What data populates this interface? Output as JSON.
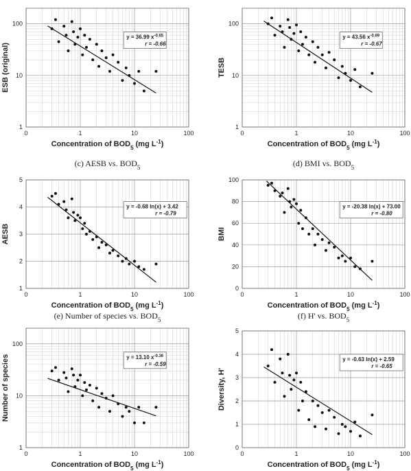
{
  "chart_data": [
    {
      "type": "scatter",
      "ylabel": "ESB (original)",
      "xlabel": [
        "Concentration of BOD",
        "5",
        " (mg L",
        "-1",
        ")"
      ],
      "x": [
        0.3,
        0.35,
        0.4,
        0.5,
        0.55,
        0.6,
        0.7,
        0.75,
        0.8,
        0.9,
        1.0,
        1.1,
        1.2,
        1.3,
        1.5,
        1.7,
        2.0,
        2.2,
        2.5,
        3.0,
        3.5,
        4.0,
        5.0,
        6.0,
        7.0,
        8.0,
        10,
        12,
        15,
        25
      ],
      "series": [
        {
          "color": "#111111",
          "values": [
            80,
            120,
            45,
            90,
            60,
            30,
            110,
            70,
            40,
            55,
            80,
            25,
            60,
            35,
            50,
            20,
            40,
            15,
            30,
            22,
            12,
            25,
            18,
            8,
            14,
            10,
            7,
            12,
            5,
            12
          ]
        }
      ],
      "xlim": [
        0.1,
        100
      ],
      "xticks": [
        {
          "value": 0.1,
          "label": "0"
        },
        1,
        10,
        100
      ],
      "xlog": true,
      "ylim": [
        1,
        200
      ],
      "yticks": [
        1,
        10,
        100
      ],
      "ylog": true,
      "grid": true,
      "fit": {
        "x": [
          0.25,
          25
        ],
        "y": [
          91,
          4.55
        ]
      },
      "equation": [
        "y = 36.99 x",
        "-0.65"
      ],
      "r_label": "r = -0.66"
    },
    {
      "type": "scatter",
      "ylabel": "TESB",
      "xlabel": [
        "Concentration of BOD",
        "5",
        " (mg L",
        "-1",
        ")"
      ],
      "x": [
        0.3,
        0.35,
        0.4,
        0.5,
        0.55,
        0.6,
        0.7,
        0.75,
        0.8,
        0.9,
        1.0,
        1.1,
        1.2,
        1.3,
        1.5,
        1.7,
        2.0,
        2.2,
        2.5,
        3.0,
        3.5,
        4.0,
        5.0,
        6.0,
        7.0,
        8.0,
        10,
        12,
        15,
        25
      ],
      "series": [
        {
          "color": "#111111",
          "values": [
            100,
            130,
            60,
            90,
            70,
            35,
            120,
            85,
            50,
            65,
            95,
            30,
            70,
            40,
            55,
            25,
            45,
            18,
            35,
            25,
            14,
            28,
            20,
            9,
            15,
            11,
            8,
            13,
            6,
            11
          ]
        }
      ],
      "xlim": [
        0.1,
        100
      ],
      "xticks": [
        {
          "value": 0.1,
          "label": "0"
        },
        1,
        10,
        100
      ],
      "xlog": true,
      "ylim": [
        1,
        200
      ],
      "yticks": [
        1,
        10,
        100
      ],
      "ylog": true,
      "grid": true,
      "fit": {
        "x": [
          0.25,
          25
        ],
        "y": [
          113,
          4.7
        ]
      },
      "equation": [
        "y = 43.56 x",
        "-0.69"
      ],
      "r_label": "r = -0.67"
    },
    {
      "type": "scatter",
      "subtitle": [
        "(c)  AESB  vs.  BOD",
        "5"
      ],
      "ylabel": "AESB",
      "xlabel": [
        "Concentration of BOD",
        "5",
        " (mg L",
        "-1",
        ")"
      ],
      "x": [
        0.3,
        0.35,
        0.4,
        0.5,
        0.55,
        0.6,
        0.7,
        0.75,
        0.8,
        0.9,
        1.0,
        1.1,
        1.2,
        1.3,
        1.5,
        1.7,
        2.0,
        2.2,
        2.5,
        3.0,
        3.5,
        4.0,
        5.0,
        6.0,
        7.0,
        8.0,
        10,
        12,
        15,
        25
      ],
      "series": [
        {
          "color": "#111111",
          "values": [
            4.4,
            4.5,
            4.1,
            4.2,
            3.9,
            3.6,
            4.3,
            3.8,
            3.5,
            3.7,
            3.6,
            3.2,
            3.4,
            3.0,
            3.1,
            2.8,
            2.9,
            2.5,
            2.7,
            2.6,
            2.3,
            2.4,
            2.2,
            2.0,
            2.1,
            1.9,
            2.0,
            1.8,
            1.7,
            1.9
          ]
        }
      ],
      "xlim": [
        0.1,
        100
      ],
      "xticks": [
        {
          "value": 0.1,
          "label": "0"
        },
        1,
        10,
        100
      ],
      "xlog": true,
      "ylim": [
        1,
        5
      ],
      "yticks": [
        1,
        2,
        3,
        4,
        5
      ],
      "ylog": false,
      "grid": true,
      "fit": {
        "x": [
          0.25,
          25
        ],
        "y": [
          4.36,
          1.23
        ]
      },
      "equation": [
        "y = -0.68 ln(x) + 3.42"
      ],
      "r_label": "r = -0.79"
    },
    {
      "type": "scatter",
      "subtitle": [
        "(d)  BMI  vs.  BOD",
        "5"
      ],
      "ylabel": "BMI",
      "xlabel": [
        "Concentration of BOD",
        "5",
        " (mg L",
        "-1",
        ")"
      ],
      "x": [
        0.3,
        0.35,
        0.4,
        0.5,
        0.55,
        0.6,
        0.7,
        0.75,
        0.8,
        0.9,
        1.0,
        1.1,
        1.2,
        1.3,
        1.5,
        1.7,
        2.0,
        2.2,
        2.5,
        3.0,
        3.5,
        4.0,
        5.0,
        6.0,
        7.0,
        8.0,
        10,
        12,
        15,
        25
      ],
      "series": [
        {
          "color": "#111111",
          "values": [
            95,
            97,
            90,
            85,
            88,
            70,
            92,
            80,
            75,
            82,
            78,
            60,
            72,
            55,
            65,
            50,
            55,
            40,
            50,
            45,
            35,
            42,
            38,
            28,
            30,
            25,
            28,
            20,
            18,
            25
          ]
        }
      ],
      "xlim": [
        0.1,
        100
      ],
      "xticks": [
        {
          "value": 0.1,
          "label": "0"
        },
        1,
        10,
        100
      ],
      "xlog": true,
      "ylim": [
        0,
        100
      ],
      "yticks": [
        0,
        20,
        40,
        60,
        80,
        100
      ],
      "ylog": false,
      "grid": true,
      "fit": {
        "x": [
          0.28,
          25
        ],
        "y": [
          98.9,
          7.4
        ]
      },
      "equation": [
        "y = -20.38 ln(x) + 73.00"
      ],
      "r_label": "r = -0.80"
    },
    {
      "type": "scatter",
      "subtitle": [
        "(e)  Number  of  species  vs.  BOD",
        "5"
      ],
      "ylabel": "Number of species",
      "xlabel": [
        "Concentration of BOD",
        "5",
        " (mg L",
        "-1",
        ")"
      ],
      "x": [
        0.3,
        0.35,
        0.4,
        0.5,
        0.55,
        0.6,
        0.7,
        0.75,
        0.8,
        0.9,
        1.0,
        1.1,
        1.2,
        1.3,
        1.5,
        1.7,
        2.0,
        2.2,
        2.5,
        3.0,
        3.5,
        4.0,
        5.0,
        6.0,
        7.0,
        8.0,
        10,
        12,
        15,
        25
      ],
      "series": [
        {
          "color": "#111111",
          "values": [
            30,
            35,
            20,
            28,
            22,
            12,
            33,
            25,
            15,
            20,
            25,
            10,
            18,
            13,
            16,
            8,
            14,
            6,
            11,
            9,
            5,
            10,
            7,
            4,
            6,
            5,
            3,
            6,
            3,
            6
          ]
        }
      ],
      "xlim": [
        0.1,
        100
      ],
      "xticks": [
        {
          "value": 0.1,
          "label": "0"
        },
        1,
        10,
        100
      ],
      "xlog": true,
      "ylim": [
        1,
        200
      ],
      "yticks": [
        1,
        10,
        100
      ],
      "ylog": true,
      "grid": true,
      "fit": {
        "x": [
          0.25,
          25
        ],
        "y": [
          21.6,
          4.1
        ]
      },
      "equation": [
        "y = 13.10 x",
        "-0.36"
      ],
      "r_label": "r = -0.59"
    },
    {
      "type": "scatter",
      "subtitle": [
        "(f)  H'  vs.  BOD",
        "5"
      ],
      "ylabel": "Diversity, H'",
      "xlabel": [
        "Concentration of BOD",
        "5",
        " (mg L",
        "-1",
        ")"
      ],
      "x": [
        0.3,
        0.35,
        0.4,
        0.5,
        0.55,
        0.6,
        0.7,
        0.75,
        0.8,
        0.9,
        1.0,
        1.1,
        1.2,
        1.3,
        1.5,
        1.7,
        2.0,
        2.2,
        2.5,
        3.0,
        3.5,
        4.0,
        5.0,
        6.0,
        7.0,
        8.0,
        10,
        12,
        15,
        25
      ],
      "series": [
        {
          "color": "#111111",
          "values": [
            3.5,
            4.2,
            2.8,
            3.8,
            3.2,
            2.2,
            4.0,
            3.1,
            2.5,
            2.9,
            3.2,
            1.6,
            2.8,
            2.0,
            2.4,
            1.2,
            2.0,
            0.9,
            1.8,
            1.5,
            0.8,
            1.6,
            1.3,
            0.6,
            1.0,
            0.9,
            0.7,
            1.1,
            0.5,
            1.4
          ]
        }
      ],
      "xlim": [
        0.1,
        100
      ],
      "xticks": [
        {
          "value": 0.1,
          "label": "0"
        },
        1,
        10,
        100
      ],
      "xlog": true,
      "ylim": [
        0,
        5
      ],
      "yticks": [
        0,
        1,
        2,
        3,
        4,
        5
      ],
      "ylog": false,
      "grid": true,
      "fit": {
        "x": [
          0.25,
          25
        ],
        "y": [
          3.46,
          0.56
        ]
      },
      "equation": [
        "y = -0.63 ln(x) + 2.59"
      ],
      "r_label": "r = -0.65"
    }
  ]
}
